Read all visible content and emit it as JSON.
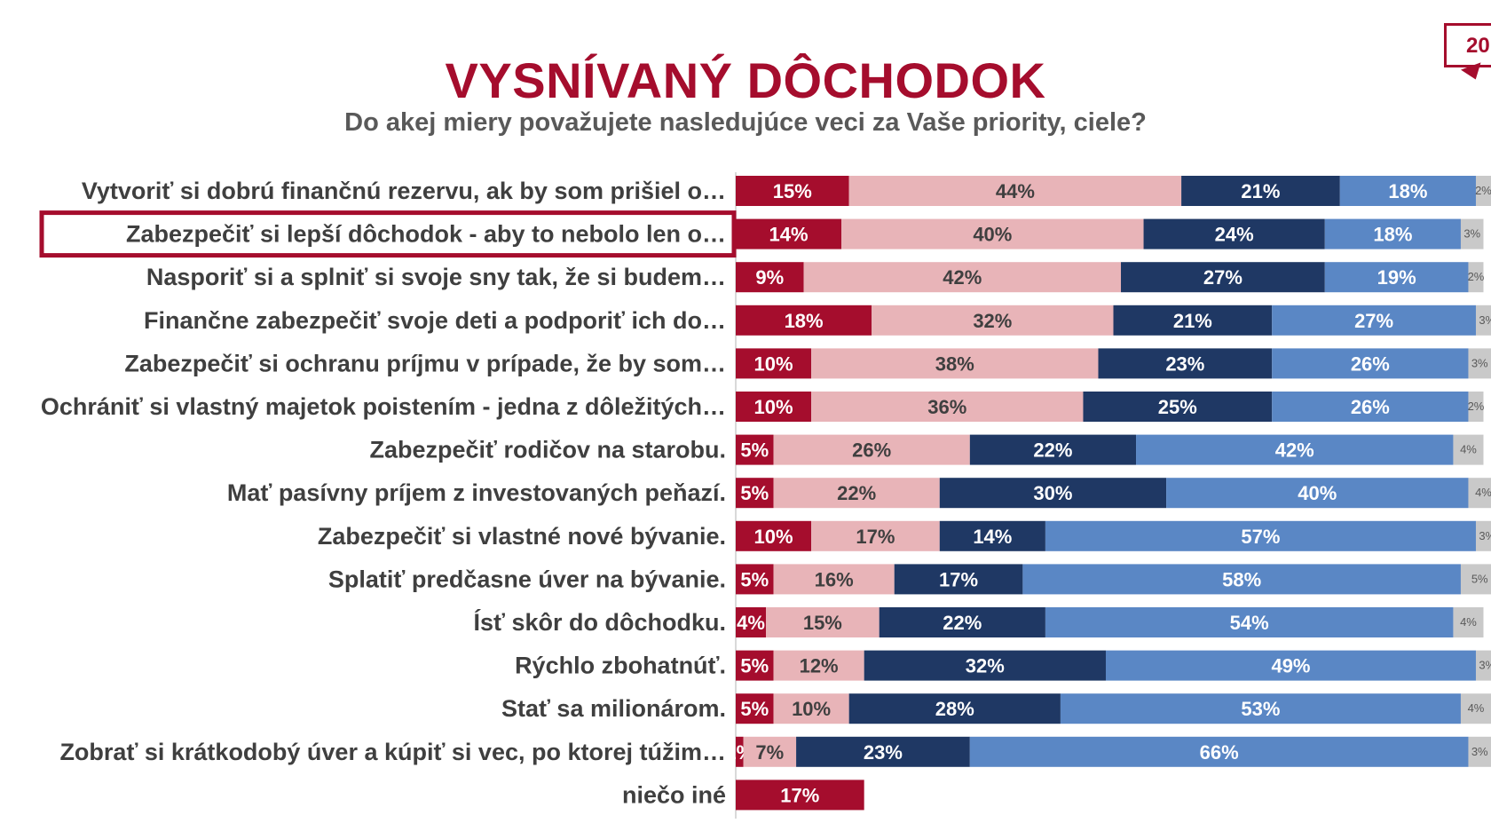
{
  "header": {
    "title": "VYSNÍVANÝ DÔCHODOK",
    "subtitle": "Do akej miery považujete nasledujúce veci za Vaše priority, ciele?",
    "corner_badge": "20"
  },
  "colors": {
    "title": "#a50d2d",
    "highlight_border": "#a50d2d",
    "category_label": "#3f3f3f"
  },
  "chart_data": {
    "type": "bar",
    "orientation": "horizontal",
    "stacked": true,
    "normalized": true,
    "highlighted_category_index": 1,
    "categories": [
      "Vytvoriť si dobrú finančnú rezervu, ak by som prišiel o…",
      "Zabezpečiť si lepší dôchodok -  aby to nebolo len o…",
      "Nasporiť si a splniť si svoje sny tak, že si budem…",
      "Finančne zabezpečiť svoje deti a podporiť ich do…",
      "Zabezpečiť si ochranu príjmu v prípade, že by som…",
      "Ochrániť si vlastný majetok poistením - jedna z dôležitých…",
      "Zabezpečiť rodičov na starobu.",
      "Mať pasívny príjem z investovaných peňazí.",
      "Zabezpečiť si vlastné nové bývanie.",
      "Splatiť predčasne úver na bývanie.",
      "Ísť skôr do dôchodku.",
      "Rýchlo zbohatnúť.",
      "Stať sa milionárom.",
      "Zobrať si  krátkodobý úver a kúpiť si vec, po ktorej túžim…",
      "niečo iné"
    ],
    "series": [
      {
        "color": "#a50d2d",
        "text_color": "#ffffff",
        "values": [
          15,
          14,
          9,
          18,
          10,
          10,
          5,
          5,
          10,
          5,
          4,
          5,
          5,
          1,
          17
        ]
      },
      {
        "color": "#e8b4b8",
        "text_color": "#3f3f3f",
        "values": [
          44,
          40,
          42,
          32,
          38,
          36,
          26,
          22,
          17,
          16,
          15,
          12,
          10,
          7,
          null
        ]
      },
      {
        "color": "#1f3864",
        "text_color": "#ffffff",
        "values": [
          21,
          24,
          27,
          21,
          23,
          25,
          22,
          30,
          14,
          17,
          22,
          32,
          28,
          23,
          null
        ]
      },
      {
        "color": "#5a87c5",
        "text_color": "#ffffff",
        "values": [
          18,
          18,
          19,
          27,
          26,
          26,
          42,
          40,
          57,
          58,
          54,
          49,
          53,
          66,
          null
        ]
      },
      {
        "color": "#c9c9c9",
        "text_color": "#595959",
        "values": [
          2,
          3,
          2,
          3,
          3,
          2,
          4,
          4,
          3,
          5,
          4,
          3,
          4,
          3,
          null
        ]
      }
    ],
    "value_suffix": "%",
    "legend": "none",
    "grid": false
  }
}
